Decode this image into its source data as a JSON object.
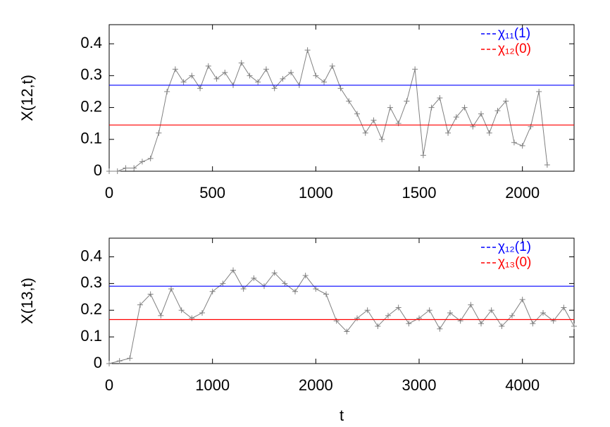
{
  "chart_data": [
    {
      "type": "line",
      "ylabel": "X(12,t)",
      "x": [
        0,
        40,
        80,
        120,
        160,
        200,
        240,
        280,
        320,
        360,
        400,
        440,
        480,
        520,
        560,
        600,
        640,
        680,
        720,
        760,
        800,
        840,
        880,
        920,
        960,
        1000,
        1040,
        1080,
        1120,
        1160,
        1200,
        1240,
        1280,
        1320,
        1360,
        1400,
        1440,
        1480,
        1520,
        1560,
        1600,
        1640,
        1680,
        1720,
        1760,
        1800,
        1840,
        1880,
        1920,
        1960,
        2000,
        2040,
        2080,
        2120
      ],
      "series": [
        {
          "color": "#808080",
          "values": [
            0,
            0,
            0.01,
            0.01,
            0.03,
            0.04,
            0.12,
            0.25,
            0.32,
            0.28,
            0.3,
            0.26,
            0.33,
            0.29,
            0.31,
            0.27,
            0.34,
            0.3,
            0.28,
            0.32,
            0.26,
            0.29,
            0.31,
            0.27,
            0.38,
            0.3,
            0.28,
            0.33,
            0.26,
            0.22,
            0.18,
            0.12,
            0.16,
            0.1,
            0.2,
            0.15,
            0.22,
            0.32,
            0.05,
            0.2,
            0.23,
            0.12,
            0.17,
            0.2,
            0.14,
            0.18,
            0.12,
            0.19,
            0.22,
            0.09,
            0.08,
            0.14,
            0.25,
            0.02
          ]
        }
      ],
      "hlines": [
        {
          "name": "χ₁₁(1)",
          "color": "#0000ff",
          "value": 0.27
        },
        {
          "name": "χ₁₂(0)",
          "color": "#ff0000",
          "value": 0.145
        }
      ],
      "xlim": [
        0,
        2250
      ],
      "ylim": [
        0,
        0.46
      ],
      "xticks": [
        0,
        500,
        1000,
        1500,
        2000
      ],
      "yticks": [
        0,
        0.1,
        0.2,
        0.3,
        0.4
      ]
    },
    {
      "type": "line",
      "xlabel": "t",
      "ylabel": "X(13,t)",
      "x": [
        0,
        100,
        200,
        300,
        400,
        500,
        600,
        700,
        800,
        900,
        1000,
        1100,
        1200,
        1300,
        1400,
        1500,
        1600,
        1700,
        1800,
        1900,
        2000,
        2100,
        2200,
        2300,
        2400,
        2500,
        2600,
        2700,
        2800,
        2900,
        3000,
        3100,
        3200,
        3300,
        3400,
        3500,
        3600,
        3700,
        3800,
        3900,
        4000,
        4100,
        4200,
        4300,
        4400,
        4500
      ],
      "series": [
        {
          "color": "#808080",
          "values": [
            0,
            0.01,
            0.02,
            0.22,
            0.26,
            0.18,
            0.28,
            0.2,
            0.17,
            0.19,
            0.27,
            0.3,
            0.35,
            0.28,
            0.32,
            0.29,
            0.34,
            0.3,
            0.27,
            0.33,
            0.28,
            0.26,
            0.16,
            0.12,
            0.17,
            0.2,
            0.14,
            0.18,
            0.21,
            0.15,
            0.17,
            0.2,
            0.13,
            0.19,
            0.16,
            0.22,
            0.15,
            0.2,
            0.14,
            0.18,
            0.24,
            0.15,
            0.19,
            0.16,
            0.21,
            0.14
          ]
        }
      ],
      "hlines": [
        {
          "name": "χ₁₂(1)",
          "color": "#0000ff",
          "value": 0.29
        },
        {
          "name": "χ₁₃(0)",
          "color": "#ff0000",
          "value": 0.165
        }
      ],
      "xlim": [
        0,
        4500
      ],
      "ylim": [
        0,
        0.47
      ],
      "xticks": [
        0,
        1000,
        2000,
        3000,
        4000
      ],
      "yticks": [
        0,
        0.1,
        0.2,
        0.3,
        0.4
      ]
    }
  ]
}
